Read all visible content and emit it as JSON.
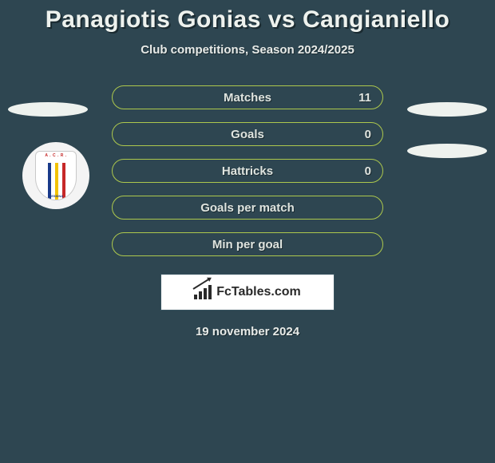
{
  "title": "Panagiotis Gonias vs Cangianiello",
  "subtitle": "Club competitions, Season 2024/2025",
  "stats": [
    {
      "label": "Matches",
      "value": "11"
    },
    {
      "label": "Goals",
      "value": "0"
    },
    {
      "label": "Hattricks",
      "value": "0"
    },
    {
      "label": "Goals per match",
      "value": ""
    },
    {
      "label": "Min per goal",
      "value": ""
    }
  ],
  "brand": "FcTables.com",
  "date": "19 november 2024",
  "badge": {
    "top_text": "A . C . R .",
    "bottom_text": "MESSINA",
    "bar_colors": [
      "#1a3a8a",
      "#f2c200",
      "#c62828"
    ]
  },
  "colors": {
    "background": "#2e4651",
    "accent_border": "#adc84d",
    "text_light": "#eef2ee",
    "shadow": "#1a2a30"
  }
}
